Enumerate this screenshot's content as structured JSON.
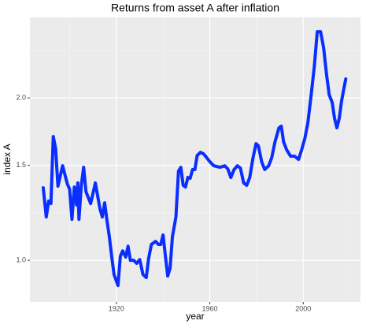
{
  "chart_data": {
    "type": "line",
    "title": "Returns from asset A after inflation",
    "x_label": "year",
    "y_label": "index A",
    "x": [
      1888.7,
      1890,
      1891,
      1892,
      1893,
      1894,
      1895,
      1897,
      1899,
      1900,
      1901,
      1902,
      1903,
      1903.5,
      1904,
      1905,
      1906,
      1907,
      1909,
      1911,
      1913,
      1914,
      1915,
      1916,
      1917,
      1918,
      1919,
      1920.7,
      1921.7,
      1922.7,
      1924,
      1925,
      1926,
      1927.4,
      1928.7,
      1930,
      1931.4,
      1932.8,
      1933.8,
      1935,
      1936.8,
      1938,
      1939,
      1940,
      1941,
      1942,
      1943,
      1944,
      1945.5,
      1946.6,
      1947.6,
      1948.6,
      1949.6,
      1950.6,
      1951.6,
      1952.6,
      1953.6,
      1954.6,
      1956,
      1957.3,
      1958.7,
      1960,
      1961.7,
      1964.4,
      1966.4,
      1967.7,
      1969,
      1970.4,
      1971.8,
      1973.1,
      1974.5,
      1975.8,
      1977.1,
      1978.5,
      1979.8,
      1980.8,
      1982.2,
      1983.5,
      1985.2,
      1986.5,
      1987.9,
      1989.6,
      1990.6,
      1991.6,
      1992.9,
      1994.6,
      1996.3,
      1998,
      1999.3,
      2000.7,
      2002,
      2003.4,
      2004.7,
      2006,
      2007.4,
      2008.7,
      2010,
      2011.1,
      2012.4,
      2013.4,
      2014.4,
      2015.4,
      2016.4,
      2017.4,
      2018.2
    ],
    "series": [
      {
        "name": "index A",
        "color": "#0a2eff",
        "values": [
          1.363,
          1.203,
          1.287,
          1.274,
          1.696,
          1.612,
          1.372,
          1.497,
          1.386,
          1.354,
          1.191,
          1.367,
          1.266,
          1.391,
          1.191,
          1.377,
          1.487,
          1.34,
          1.274,
          1.391,
          1.245,
          1.203,
          1.278,
          1.183,
          1.106,
          1.017,
          0.941,
          0.898,
          1.017,
          1.041,
          1.014,
          1.062,
          1.0,
          1.0,
          0.987,
          1.003,
          0.941,
          0.929,
          1.007,
          1.07,
          1.084,
          1.07,
          1.07,
          1.114,
          1.017,
          0.935,
          0.967,
          1.106,
          1.203,
          1.463,
          1.487,
          1.377,
          1.367,
          1.424,
          1.419,
          1.473,
          1.473,
          1.564,
          1.585,
          1.575,
          1.549,
          1.523,
          1.497,
          1.487,
          1.497,
          1.477,
          1.424,
          1.473,
          1.497,
          1.482,
          1.391,
          1.377,
          1.424,
          1.549,
          1.645,
          1.629,
          1.523,
          1.473,
          1.497,
          1.549,
          1.657,
          1.76,
          1.772,
          1.657,
          1.602,
          1.559,
          1.559,
          1.538,
          1.602,
          1.684,
          1.802,
          2.027,
          2.28,
          2.653,
          2.653,
          2.48,
          2.205,
          2.027,
          1.96,
          1.832,
          1.76,
          1.832,
          1.973,
          2.082,
          2.168
        ]
      }
    ],
    "xlim": [
      1883,
      2024.5
    ],
    "xticks": [
      1920,
      1960,
      2000
    ],
    "x_minor_ticks": [
      1900,
      1940,
      1980,
      2020
    ],
    "ylim": [
      0.837,
      2.82
    ],
    "log_y": true,
    "yticks": [
      {
        "value": 1,
        "label": "1.0"
      },
      {
        "value": 1.5,
        "label": "1.5"
      },
      {
        "value": 2,
        "label": "2.0"
      }
    ],
    "y_minor_ticks": [
      1.225,
      1.732,
      2.449
    ],
    "grid": true
  }
}
